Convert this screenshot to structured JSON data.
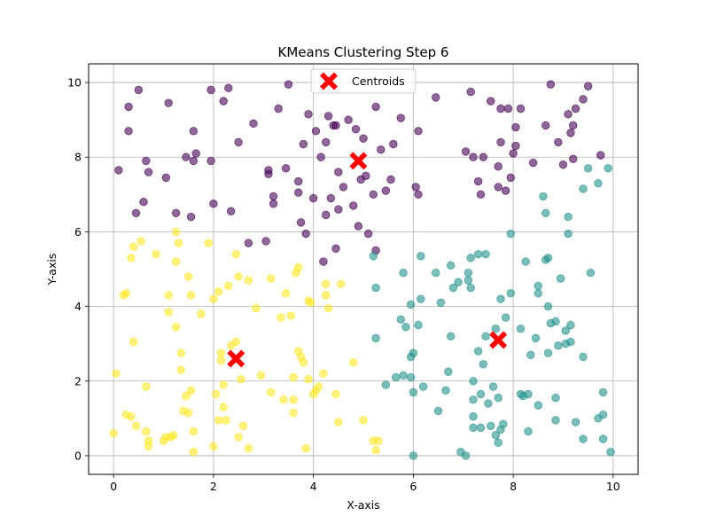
{
  "chart_data": {
    "type": "scatter",
    "title": "KMeans Clustering Step 6",
    "xlabel": "X-axis",
    "ylabel": "Y-axis",
    "xlim": [
      -0.5,
      10.5
    ],
    "ylim": [
      -0.5,
      10.5
    ],
    "xticks": [
      0,
      2,
      4,
      6,
      8,
      10
    ],
    "yticks": [
      0,
      2,
      4,
      6,
      8,
      10
    ],
    "grid": true,
    "legend": {
      "placement": "top-center",
      "entries": [
        "Centroids"
      ]
    },
    "colors": {
      "cluster_0": "#440154",
      "cluster_1": "#21918c",
      "cluster_2": "#fde725",
      "centroid": "#ff0000",
      "grid": "#b0b0b0"
    },
    "centroids": [
      [
        4.9,
        7.9
      ],
      [
        7.7,
        3.1
      ],
      [
        2.45,
        2.6
      ]
    ],
    "series": [
      {
        "cluster": 0,
        "points": [
          [
            0.1,
            7.65
          ],
          [
            0.3,
            9.35
          ],
          [
            0.3,
            8.7
          ],
          [
            0.5,
            9.8
          ],
          [
            0.45,
            6.5
          ],
          [
            0.6,
            6.8
          ],
          [
            0.65,
            7.9
          ],
          [
            0.7,
            7.6
          ],
          [
            1.05,
            7.45
          ],
          [
            1.1,
            9.45
          ],
          [
            1.25,
            6.5
          ],
          [
            1.45,
            8.0
          ],
          [
            1.55,
            6.4
          ],
          [
            1.6,
            7.9
          ],
          [
            1.6,
            8.7
          ],
          [
            1.65,
            8.1
          ],
          [
            1.95,
            7.9
          ],
          [
            1.95,
            9.8
          ],
          [
            2.0,
            6.75
          ],
          [
            2.2,
            9.5
          ],
          [
            2.3,
            9.85
          ],
          [
            2.35,
            6.55
          ],
          [
            2.5,
            8.4
          ],
          [
            2.7,
            5.7
          ],
          [
            2.8,
            8.9
          ],
          [
            3.05,
            5.75
          ],
          [
            3.1,
            7.55
          ],
          [
            3.1,
            7.65
          ],
          [
            3.2,
            6.75
          ],
          [
            3.2,
            6.95
          ],
          [
            3.3,
            9.3
          ],
          [
            3.45,
            7.7
          ],
          [
            3.5,
            9.95
          ],
          [
            3.7,
            7.35
          ],
          [
            3.7,
            7.05
          ],
          [
            3.75,
            6.25
          ],
          [
            3.8,
            8.35
          ],
          [
            3.85,
            5.95
          ],
          [
            3.9,
            9.15
          ],
          [
            4.0,
            6.9
          ],
          [
            4.05,
            8.7
          ],
          [
            4.15,
            8.0
          ],
          [
            4.2,
            5.2
          ],
          [
            4.25,
            8.4
          ],
          [
            4.25,
            6.45
          ],
          [
            4.3,
            9.1
          ],
          [
            4.35,
            6.9
          ],
          [
            4.4,
            8.85
          ],
          [
            4.45,
            8.85
          ],
          [
            4.45,
            5.55
          ],
          [
            4.5,
            7.6
          ],
          [
            4.5,
            6.6
          ],
          [
            4.6,
            7.2
          ],
          [
            4.7,
            9.0
          ],
          [
            4.8,
            6.7
          ],
          [
            4.85,
            8.75
          ],
          [
            4.9,
            6.15
          ],
          [
            4.95,
            7.4
          ],
          [
            5.0,
            8.5
          ],
          [
            5.05,
            7.5
          ],
          [
            5.1,
            5.95
          ],
          [
            5.2,
            7.0
          ],
          [
            5.25,
            5.5
          ],
          [
            5.25,
            9.35
          ],
          [
            5.35,
            8.2
          ],
          [
            5.45,
            7.1
          ],
          [
            5.55,
            7.4
          ],
          [
            5.6,
            8.35
          ],
          [
            5.75,
            9.05
          ],
          [
            6.05,
            7.2
          ],
          [
            6.1,
            7.0
          ],
          [
            6.1,
            8.7
          ],
          [
            6.45,
            9.6
          ],
          [
            7.05,
            8.15
          ],
          [
            7.15,
            9.75
          ],
          [
            7.2,
            8.0
          ],
          [
            7.3,
            7.35
          ],
          [
            7.35,
            7.0
          ],
          [
            7.4,
            8.0
          ],
          [
            7.55,
            9.5
          ],
          [
            7.7,
            7.75
          ],
          [
            7.7,
            7.2
          ],
          [
            7.75,
            9.3
          ],
          [
            7.75,
            8.4
          ],
          [
            7.85,
            7.1
          ],
          [
            7.9,
            9.3
          ],
          [
            7.95,
            7.45
          ],
          [
            8.0,
            8.1
          ],
          [
            8.05,
            8.3
          ],
          [
            8.05,
            8.8
          ],
          [
            8.15,
            9.3
          ],
          [
            8.4,
            7.85
          ],
          [
            8.65,
            8.85
          ],
          [
            8.75,
            9.95
          ],
          [
            8.9,
            8.4
          ],
          [
            9.0,
            7.8
          ],
          [
            9.1,
            9.15
          ],
          [
            9.15,
            8.65
          ],
          [
            9.2,
            8.85
          ],
          [
            9.2,
            7.95
          ],
          [
            9.25,
            9.3
          ],
          [
            9.4,
            9.55
          ],
          [
            9.5,
            9.9
          ],
          [
            9.75,
            8.05
          ]
        ]
      },
      {
        "cluster": 1,
        "points": [
          [
            5.2,
            5.35
          ],
          [
            5.25,
            4.5
          ],
          [
            5.25,
            3.15
          ],
          [
            5.45,
            1.9
          ],
          [
            5.65,
            2.1
          ],
          [
            5.75,
            3.65
          ],
          [
            5.8,
            4.9
          ],
          [
            5.8,
            2.15
          ],
          [
            5.85,
            3.45
          ],
          [
            5.95,
            4.05
          ],
          [
            5.95,
            2.65
          ],
          [
            5.95,
            2.1
          ],
          [
            6.0,
            1.7
          ],
          [
            6.0,
            2.75
          ],
          [
            6.0,
            0.0
          ],
          [
            6.1,
            3.5
          ],
          [
            6.15,
            4.2
          ],
          [
            6.15,
            5.35
          ],
          [
            6.2,
            1.85
          ],
          [
            6.45,
            4.9
          ],
          [
            6.5,
            1.2
          ],
          [
            6.55,
            4.1
          ],
          [
            6.65,
            1.75
          ],
          [
            6.7,
            2.25
          ],
          [
            6.75,
            3.2
          ],
          [
            6.75,
            5.1
          ],
          [
            6.8,
            4.5
          ],
          [
            6.9,
            4.65
          ],
          [
            6.95,
            0.1
          ],
          [
            7.05,
            0.0
          ],
          [
            7.1,
            4.7
          ],
          [
            7.1,
            4.9
          ],
          [
            7.15,
            5.3
          ],
          [
            7.15,
            4.5
          ],
          [
            7.2,
            2.0
          ],
          [
            7.2,
            1.5
          ],
          [
            7.2,
            1.05
          ],
          [
            7.2,
            0.75
          ],
          [
            7.3,
            5.4
          ],
          [
            7.3,
            2.8
          ],
          [
            7.35,
            0.75
          ],
          [
            7.35,
            1.65
          ],
          [
            7.4,
            2.45
          ],
          [
            7.45,
            3.2
          ],
          [
            7.45,
            5.4
          ],
          [
            7.5,
            1.4
          ],
          [
            7.55,
            0.8
          ],
          [
            7.6,
            1.85
          ],
          [
            7.65,
            3.4
          ],
          [
            7.65,
            0.55
          ],
          [
            7.7,
            0.35
          ],
          [
            7.7,
            1.55
          ],
          [
            7.75,
            4.2
          ],
          [
            7.75,
            0.7
          ],
          [
            7.8,
            0.85
          ],
          [
            7.85,
            3.7
          ],
          [
            7.95,
            5.95
          ],
          [
            7.95,
            4.35
          ],
          [
            8.15,
            1.65
          ],
          [
            8.15,
            3.4
          ],
          [
            8.2,
            1.6
          ],
          [
            8.25,
            5.2
          ],
          [
            8.3,
            1.65
          ],
          [
            8.3,
            0.65
          ],
          [
            8.35,
            2.7
          ],
          [
            8.45,
            3.15
          ],
          [
            8.5,
            4.35
          ],
          [
            8.5,
            4.55
          ],
          [
            8.5,
            1.35
          ],
          [
            8.6,
            6.95
          ],
          [
            8.65,
            5.25
          ],
          [
            8.65,
            6.5
          ],
          [
            8.7,
            5.3
          ],
          [
            8.7,
            4.0
          ],
          [
            8.7,
            2.75
          ],
          [
            8.75,
            3.55
          ],
          [
            8.85,
            0.95
          ],
          [
            8.85,
            3.6
          ],
          [
            8.85,
            1.55
          ],
          [
            8.9,
            2.95
          ],
          [
            8.95,
            4.75
          ],
          [
            9.05,
            3.0
          ],
          [
            9.05,
            3.35
          ],
          [
            9.1,
            5.95
          ],
          [
            9.1,
            6.4
          ],
          [
            9.15,
            3.05
          ],
          [
            9.15,
            3.5
          ],
          [
            9.25,
            0.9
          ],
          [
            9.4,
            7.15
          ],
          [
            9.4,
            2.65
          ],
          [
            9.4,
            0.45
          ],
          [
            9.5,
            7.7
          ],
          [
            9.55,
            4.9
          ],
          [
            9.7,
            7.3
          ],
          [
            9.7,
            1.0
          ],
          [
            9.8,
            1.7
          ],
          [
            9.8,
            1.1
          ],
          [
            9.8,
            0.45
          ],
          [
            9.9,
            7.7
          ],
          [
            9.95,
            0.1
          ]
        ]
      },
      {
        "cluster": 2,
        "points": [
          [
            0.0,
            0.6
          ],
          [
            0.05,
            2.2
          ],
          [
            0.2,
            4.3
          ],
          [
            0.25,
            4.35
          ],
          [
            0.25,
            1.1
          ],
          [
            0.35,
            1.05
          ],
          [
            0.35,
            5.3
          ],
          [
            0.4,
            3.05
          ],
          [
            0.4,
            5.6
          ],
          [
            0.45,
            0.8
          ],
          [
            0.55,
            5.75
          ],
          [
            0.65,
            1.85
          ],
          [
            0.65,
            0.65
          ],
          [
            0.7,
            0.25
          ],
          [
            0.7,
            0.4
          ],
          [
            0.85,
            5.4
          ],
          [
            1.0,
            0.4
          ],
          [
            1.05,
            0.5
          ],
          [
            1.1,
            4.3
          ],
          [
            1.1,
            3.85
          ],
          [
            1.15,
            0.5
          ],
          [
            1.2,
            0.55
          ],
          [
            1.25,
            6.0
          ],
          [
            1.25,
            5.2
          ],
          [
            1.25,
            3.45
          ],
          [
            1.3,
            5.7
          ],
          [
            1.35,
            2.75
          ],
          [
            1.35,
            2.3
          ],
          [
            1.4,
            1.2
          ],
          [
            1.45,
            1.6
          ],
          [
            1.5,
            1.15
          ],
          [
            1.5,
            4.8
          ],
          [
            1.55,
            4.3
          ],
          [
            1.55,
            1.75
          ],
          [
            1.6,
            0.65
          ],
          [
            1.6,
            0.1
          ],
          [
            1.75,
            3.8
          ],
          [
            1.9,
            5.7
          ],
          [
            2.0,
            4.2
          ],
          [
            2.0,
            0.25
          ],
          [
            2.05,
            1.65
          ],
          [
            2.1,
            4.4
          ],
          [
            2.1,
            0.95
          ],
          [
            2.15,
            2.55
          ],
          [
            2.15,
            2.75
          ],
          [
            2.2,
            1.9
          ],
          [
            2.2,
            1.3
          ],
          [
            2.25,
            0.95
          ],
          [
            2.3,
            4.55
          ],
          [
            2.35,
            2.95
          ],
          [
            2.45,
            3.05
          ],
          [
            2.45,
            5.4
          ],
          [
            2.5,
            4.8
          ],
          [
            2.5,
            0.5
          ],
          [
            2.55,
            2.05
          ],
          [
            2.6,
            0.8
          ],
          [
            2.7,
            4.7
          ],
          [
            2.7,
            0.2
          ],
          [
            2.85,
            3.95
          ],
          [
            2.95,
            2.15
          ],
          [
            3.15,
            4.75
          ],
          [
            3.15,
            1.7
          ],
          [
            3.35,
            3.7
          ],
          [
            3.4,
            1.5
          ],
          [
            3.45,
            4.35
          ],
          [
            3.55,
            3.75
          ],
          [
            3.6,
            2.1
          ],
          [
            3.6,
            1.15
          ],
          [
            3.6,
            1.5
          ],
          [
            3.65,
            4.9
          ],
          [
            3.7,
            2.8
          ],
          [
            3.7,
            5.05
          ],
          [
            3.75,
            2.65
          ],
          [
            3.8,
            2.5
          ],
          [
            3.85,
            0.2
          ],
          [
            3.9,
            2.05
          ],
          [
            3.9,
            4.15
          ],
          [
            3.95,
            4.1
          ],
          [
            4.0,
            1.65
          ],
          [
            4.05,
            1.75
          ],
          [
            4.1,
            1.85
          ],
          [
            4.2,
            2.2
          ],
          [
            4.25,
            4.3
          ],
          [
            4.25,
            4.6
          ],
          [
            4.3,
            3.95
          ],
          [
            4.45,
            1.65
          ],
          [
            4.5,
            0.9
          ],
          [
            4.55,
            4.6
          ],
          [
            4.8,
            2.5
          ],
          [
            5.0,
            0.95
          ],
          [
            5.2,
            0.4
          ],
          [
            5.3,
            0.4
          ],
          [
            5.25,
            0.15
          ]
        ]
      }
    ]
  }
}
